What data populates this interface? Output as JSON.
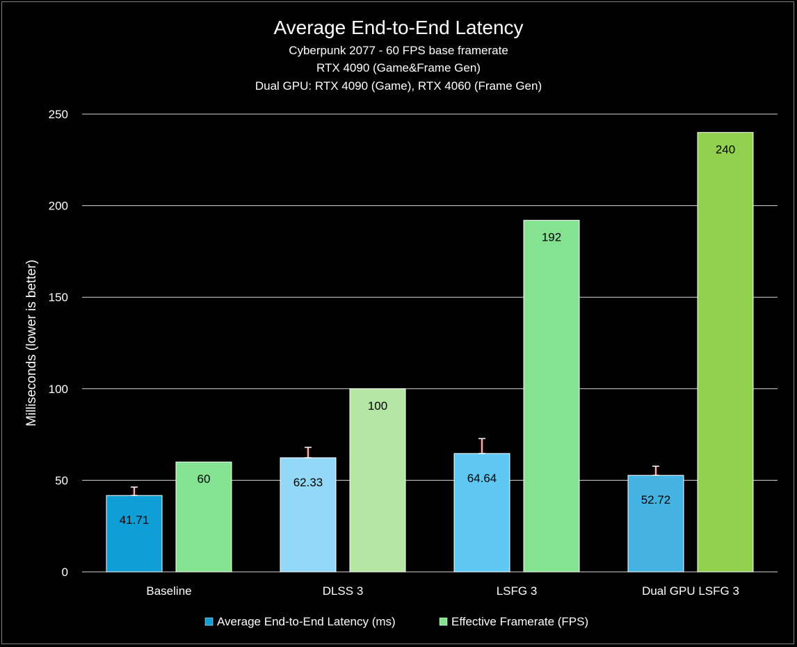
{
  "chart_data": {
    "type": "bar",
    "title": "Average End-to-End Latency",
    "subtitles": [
      "Cyberpunk 2077 - 60 FPS base framerate",
      "RTX 4090 (Game&Frame Gen)",
      "Dual GPU: RTX 4090 (Game), RTX 4060 (Frame Gen)"
    ],
    "ylabel": "Milliseconds (lower is better)",
    "xlabel": "",
    "ylim": [
      0,
      250
    ],
    "yticks": [
      0,
      50,
      100,
      150,
      200,
      250
    ],
    "grid": true,
    "legend_position": "bottom",
    "categories": [
      "Baseline",
      "DLSS 3",
      "LSFG 3",
      "Dual GPU LSFG 3"
    ],
    "series": [
      {
        "name": "Average End-to-End Latency (ms)",
        "values": [
          41.71,
          62.33,
          64.64,
          52.72
        ],
        "labels": [
          "41.71",
          "62.33",
          "64.64",
          "52.72"
        ],
        "error_bars": [
          [
            41.71,
            46.3
          ],
          [
            62.33,
            68.0
          ],
          [
            64.64,
            72.8
          ],
          [
            52.72,
            57.7
          ]
        ],
        "colors": [
          "#0f9ed5",
          "#94d8f8",
          "#5ec8f2",
          "#44b3e1"
        ],
        "legend_color": "#0f9ed5"
      },
      {
        "name": "Effective Framerate (FPS)",
        "values": [
          60,
          100,
          192,
          240
        ],
        "labels": [
          "60",
          "100",
          "192",
          "240"
        ],
        "colors": [
          "#84e291",
          "#b4e5a2",
          "#84e291",
          "#92d050"
        ],
        "legend_color": "#84e291"
      }
    ],
    "error_bar_color": "#9e1f1f",
    "gridline_color": "#d9d9d9",
    "background_color": "#000000"
  }
}
